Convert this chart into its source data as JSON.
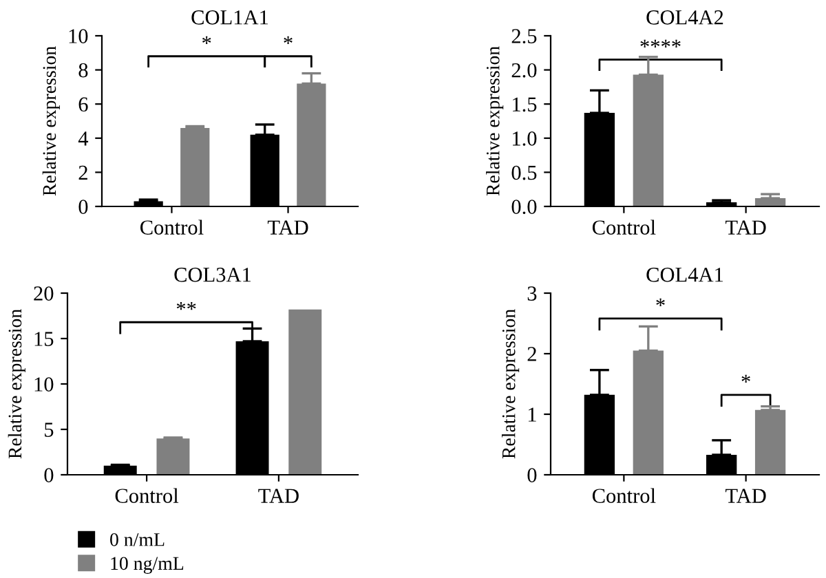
{
  "chart_data": [
    {
      "type": "bar",
      "title": "COL1A1",
      "ylabel": "Relative expression",
      "categories": [
        "Control",
        "TAD"
      ],
      "ylim": [
        0,
        10
      ],
      "yticks": [
        0,
        2,
        4,
        6,
        8,
        10
      ],
      "series": [
        {
          "color": "#000000",
          "values": [
            0.3,
            4.2
          ],
          "errors": [
            [
              0.3,
              0.4
            ],
            [
              4.2,
              4.8
            ]
          ]
        },
        {
          "color": "#808080",
          "values": [
            4.6,
            7.2
          ],
          "errors": [
            [
              4.6,
              4.7
            ],
            [
              7.2,
              7.8
            ]
          ]
        }
      ],
      "annotations": [
        "*",
        "*"
      ]
    },
    {
      "type": "bar",
      "title": "COL4A2",
      "ylabel": "Relative expression",
      "categories": [
        "Control",
        "TAD"
      ],
      "ylim": [
        0,
        2.5
      ],
      "yticks": [
        {
          "value": 0,
          "label": "0.0"
        },
        0.5,
        {
          "value": 1,
          "label": "1.0"
        },
        1.5,
        {
          "value": 2,
          "label": "2.0"
        },
        2.5
      ],
      "series": [
        {
          "color": "#000000",
          "values": [
            1.37,
            0.06
          ],
          "errors": [
            [
              1.37,
              1.7
            ],
            [
              0.06,
              0.09
            ]
          ]
        },
        {
          "color": "#808080",
          "values": [
            1.93,
            0.12
          ],
          "errors": [
            [
              1.93,
              2.19
            ],
            [
              0.12,
              0.18
            ]
          ]
        }
      ],
      "annotations": [
        "****"
      ]
    },
    {
      "type": "bar",
      "title": "COL3A1",
      "ylabel": "Relative expression",
      "categories": [
        "Control",
        "TAD"
      ],
      "ylim": [
        0,
        20
      ],
      "yticks": [
        0,
        5,
        10,
        15,
        20
      ],
      "legend": "bottom",
      "series": [
        {
          "name": "0 n/mL",
          "color": "#000000",
          "values": [
            1.0,
            14.7
          ],
          "errors": [
            [
              1.0,
              1.1
            ],
            [
              14.7,
              16.1
            ]
          ]
        },
        {
          "name": "10 ng/mL",
          "color": "#808080",
          "values": [
            4.0,
            18.2
          ],
          "errors": [
            [
              4.0,
              4.1
            ],
            null
          ]
        }
      ],
      "annotations": [
        "**"
      ]
    },
    {
      "type": "bar",
      "title": "COL4A1",
      "ylabel": "Relative expression",
      "categories": [
        "Control",
        "TAD"
      ],
      "ylim": [
        0,
        3
      ],
      "yticks": [
        0,
        1,
        2,
        3
      ],
      "series": [
        {
          "color": "#000000",
          "values": [
            1.32,
            0.33
          ],
          "errors": [
            [
              1.32,
              1.73
            ],
            [
              0.33,
              0.57
            ]
          ]
        },
        {
          "color": "#808080",
          "values": [
            2.05,
            1.07
          ],
          "errors": [
            [
              2.05,
              2.45
            ],
            [
              1.07,
              1.13
            ]
          ]
        }
      ],
      "annotations": [
        "*",
        "*"
      ]
    }
  ]
}
